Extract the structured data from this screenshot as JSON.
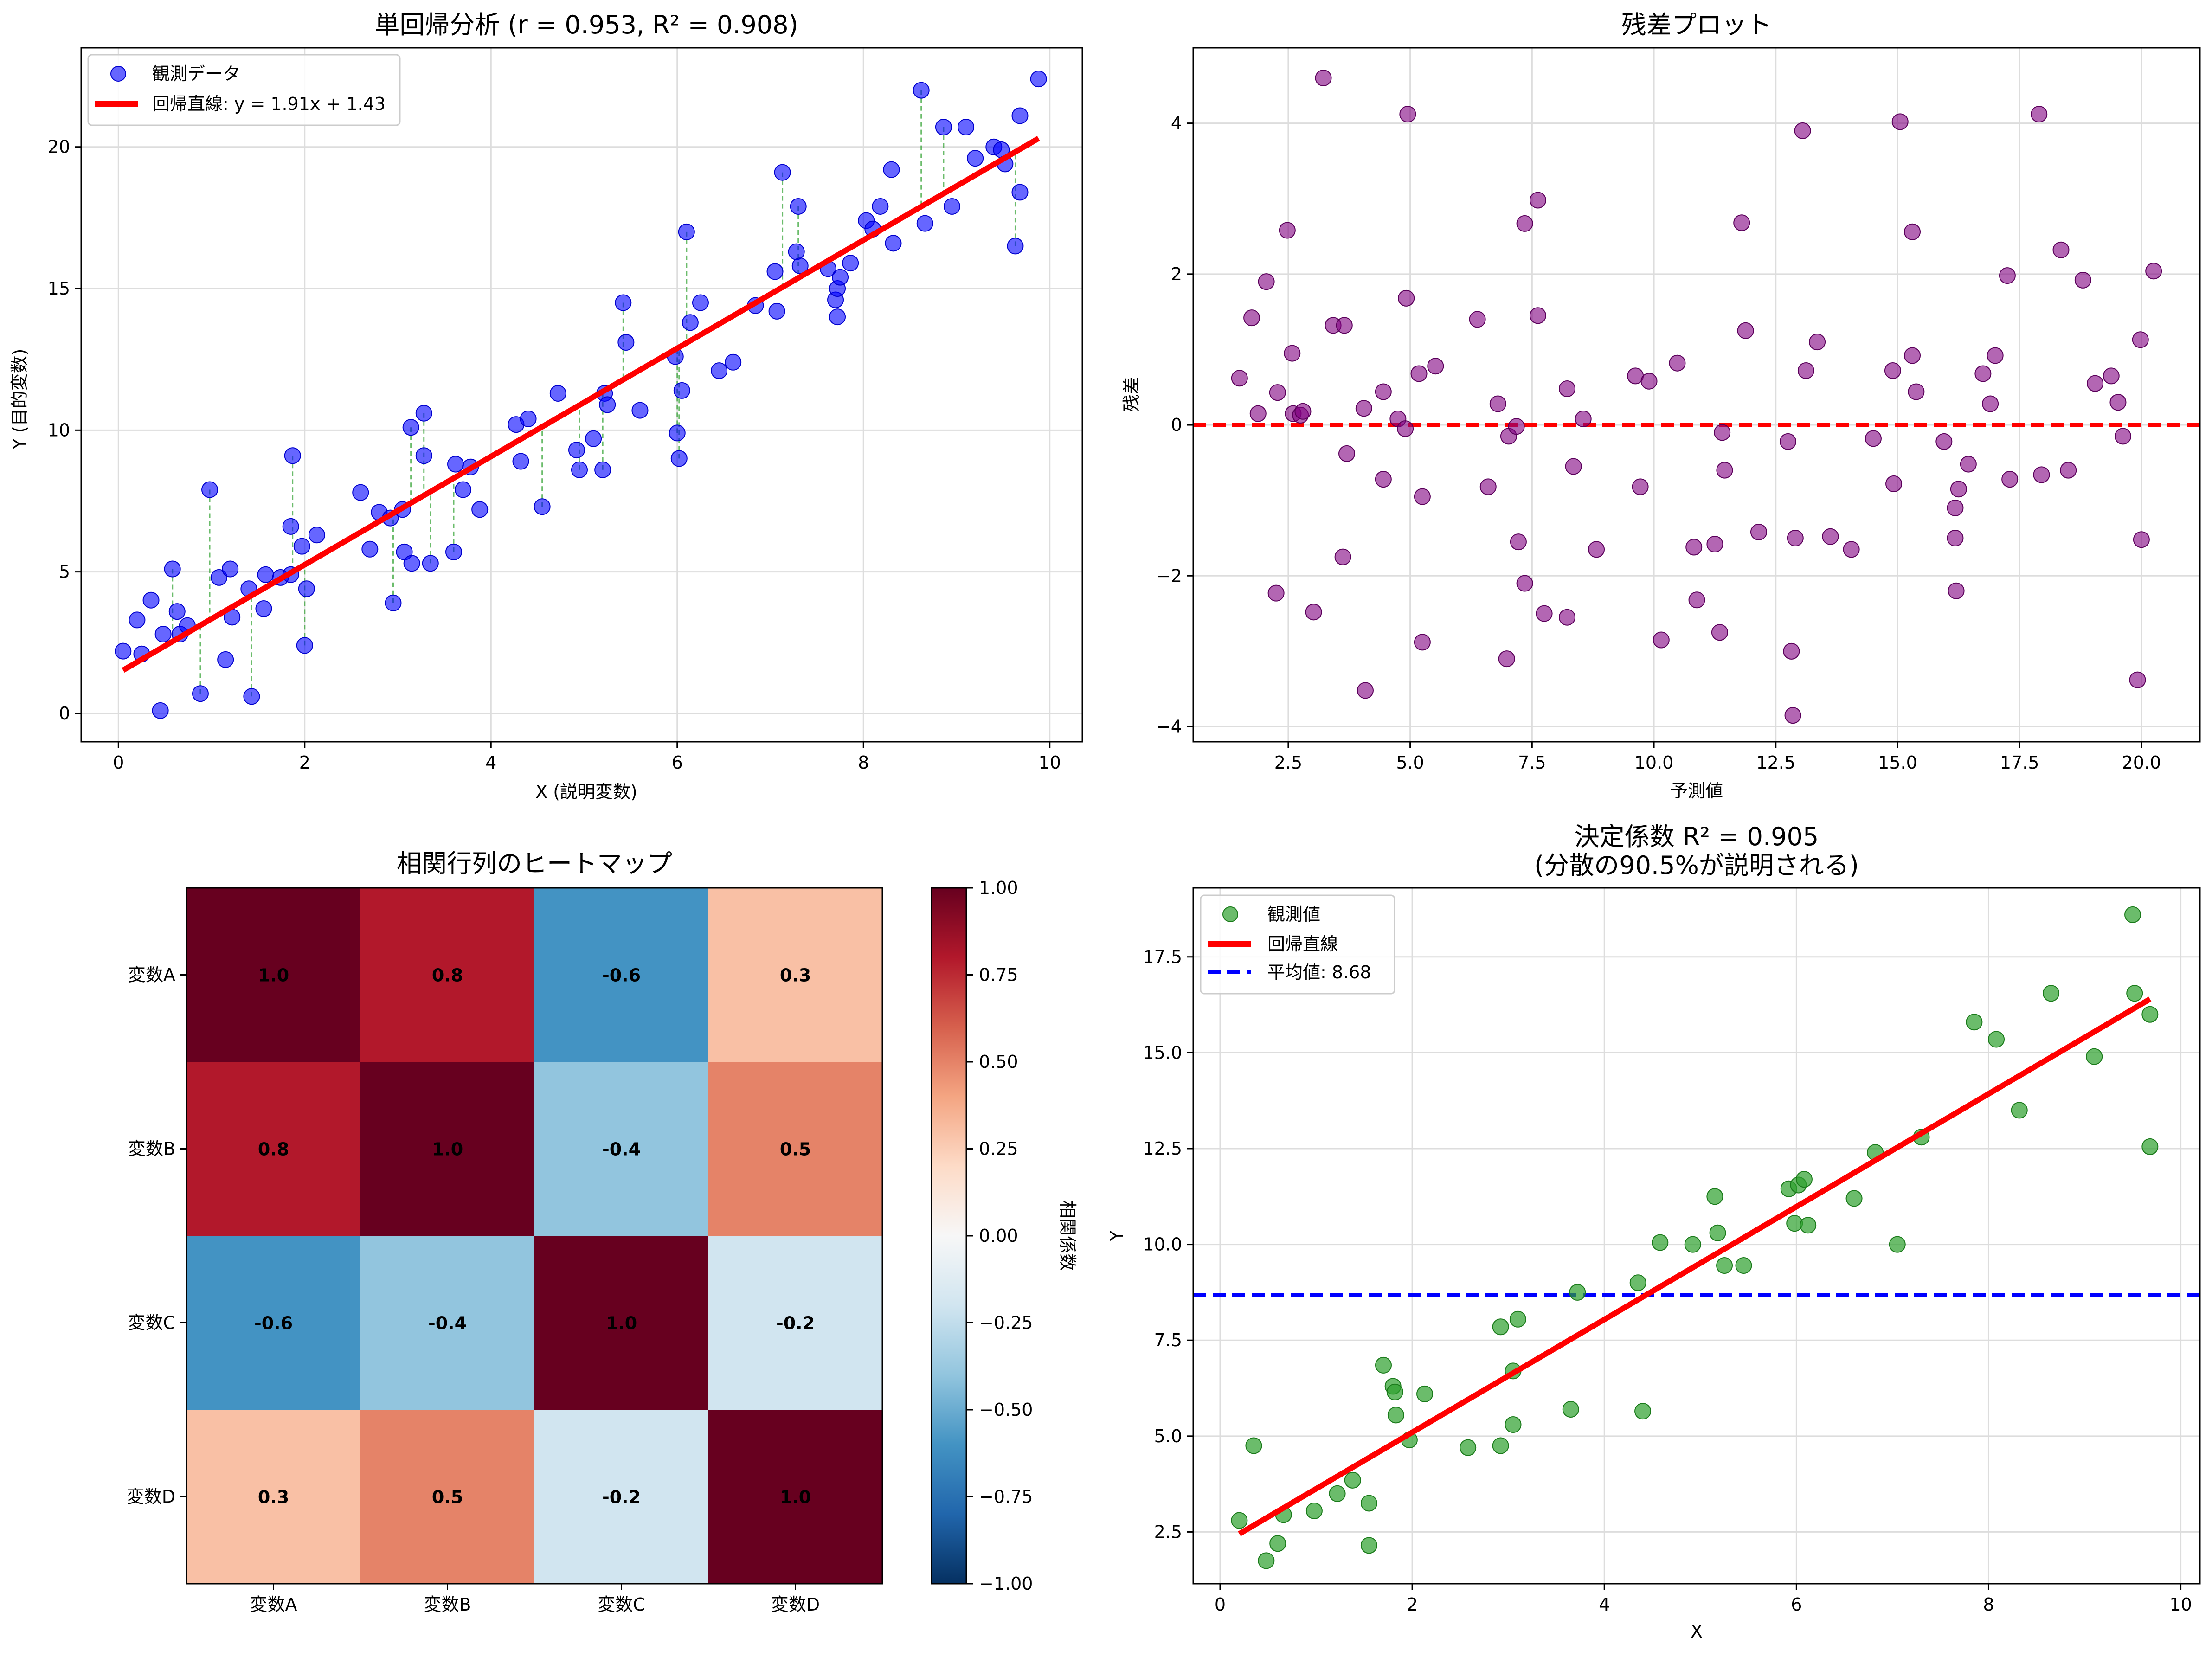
{
  "chart_data": [
    {
      "id": "regression",
      "type": "scatter",
      "title": "単回帰分析 (r = 0.953, R² = 0.908)",
      "xlabel": "X (説明変数)",
      "ylabel": "Y (目的変数)",
      "xlim": [
        -0.4,
        10.35
      ],
      "ylim": [
        -1.0,
        23.5
      ],
      "xticks": [
        0,
        2,
        4,
        6,
        8,
        10
      ],
      "yticks": [
        0,
        5,
        10,
        15,
        20
      ],
      "grid": true,
      "legend_position": "top-left",
      "legend": [
        "観測データ",
        "回帰直線: y = 1.91x + 1.43"
      ],
      "colors": {
        "points": "#0000ff",
        "line": "#ff0000",
        "residual_lines": "#2ca02c"
      },
      "regression_line": {
        "slope": 1.91,
        "intercept": 1.43,
        "x_range": [
          0.05,
          9.88
        ]
      },
      "points": [
        [
          0.05,
          2.2
        ],
        [
          0.2,
          3.3
        ],
        [
          0.25,
          2.1
        ],
        [
          0.35,
          4.0
        ],
        [
          0.45,
          0.1
        ],
        [
          0.48,
          2.8
        ],
        [
          0.58,
          5.1
        ],
        [
          0.63,
          3.6
        ],
        [
          0.66,
          2.8
        ],
        [
          0.74,
          3.1
        ],
        [
          0.88,
          0.7
        ],
        [
          0.98,
          7.9
        ],
        [
          1.08,
          4.8
        ],
        [
          1.15,
          1.9
        ],
        [
          1.2,
          5.1
        ],
        [
          1.22,
          3.4
        ],
        [
          1.4,
          4.4
        ],
        [
          1.43,
          0.6
        ],
        [
          1.56,
          3.7
        ],
        [
          1.58,
          4.9
        ],
        [
          1.74,
          4.8
        ],
        [
          1.85,
          4.9
        ],
        [
          1.85,
          6.6
        ],
        [
          1.87,
          9.1
        ],
        [
          1.97,
          5.9
        ],
        [
          2.0,
          2.4
        ],
        [
          2.02,
          4.4
        ],
        [
          2.13,
          6.3
        ],
        [
          2.6,
          7.8
        ],
        [
          2.7,
          5.8
        ],
        [
          2.8,
          7.1
        ],
        [
          2.92,
          6.9
        ],
        [
          2.95,
          3.9
        ],
        [
          3.05,
          7.2
        ],
        [
          3.07,
          5.7
        ],
        [
          3.15,
          5.3
        ],
        [
          3.14,
          10.1
        ],
        [
          3.28,
          10.6
        ],
        [
          3.28,
          9.1
        ],
        [
          3.35,
          5.3
        ],
        [
          3.6,
          5.7
        ],
        [
          3.62,
          8.8
        ],
        [
          3.7,
          7.9
        ],
        [
          3.78,
          8.7
        ],
        [
          3.88,
          7.2
        ],
        [
          4.27,
          10.2
        ],
        [
          4.32,
          8.9
        ],
        [
          4.4,
          10.4
        ],
        [
          4.55,
          7.3
        ],
        [
          4.72,
          11.3
        ],
        [
          4.92,
          9.3
        ],
        [
          4.95,
          8.6
        ],
        [
          5.1,
          9.7
        ],
        [
          5.2,
          8.6
        ],
        [
          5.22,
          11.3
        ],
        [
          5.25,
          10.9
        ],
        [
          5.42,
          14.5
        ],
        [
          5.45,
          13.1
        ],
        [
          5.6,
          10.7
        ],
        [
          5.98,
          12.6
        ],
        [
          6.0,
          9.9
        ],
        [
          6.02,
          9.0
        ],
        [
          6.05,
          11.4
        ],
        [
          6.1,
          17.0
        ],
        [
          6.14,
          13.8
        ],
        [
          6.25,
          14.5
        ],
        [
          6.45,
          12.1
        ],
        [
          6.6,
          12.4
        ],
        [
          6.84,
          14.4
        ],
        [
          7.05,
          15.6
        ],
        [
          7.07,
          14.2
        ],
        [
          7.13,
          19.1
        ],
        [
          7.28,
          16.3
        ],
        [
          7.3,
          17.9
        ],
        [
          7.32,
          15.8
        ],
        [
          7.62,
          15.7
        ],
        [
          7.7,
          14.6
        ],
        [
          7.72,
          14.0
        ],
        [
          7.72,
          15.0
        ],
        [
          7.75,
          15.4
        ],
        [
          7.86,
          15.9
        ],
        [
          8.03,
          17.4
        ],
        [
          8.1,
          17.1
        ],
        [
          8.18,
          17.9
        ],
        [
          8.3,
          19.2
        ],
        [
          8.32,
          16.6
        ],
        [
          8.62,
          22.0
        ],
        [
          8.66,
          17.3
        ],
        [
          8.86,
          20.7
        ],
        [
          8.95,
          17.9
        ],
        [
          9.1,
          20.7
        ],
        [
          9.2,
          19.6
        ],
        [
          9.4,
          20.0
        ],
        [
          9.48,
          19.9
        ],
        [
          9.52,
          19.4
        ],
        [
          9.63,
          16.5
        ],
        [
          9.68,
          21.1
        ],
        [
          9.68,
          18.4
        ],
        [
          9.88,
          22.4
        ]
      ]
    },
    {
      "id": "residuals",
      "type": "scatter",
      "title": "残差プロット",
      "xlabel": "予測値",
      "ylabel": "残差",
      "xlim": [
        0.55,
        21.2
      ],
      "ylim": [
        -4.2,
        5.0
      ],
      "xticks": [
        2.5,
        5.0,
        7.5,
        10.0,
        12.5,
        15.0,
        17.5,
        20.0
      ],
      "xtick_labels": [
        "2.5",
        "5.0",
        "7.5",
        "10.0",
        "12.5",
        "15.0",
        "17.5",
        "20.0"
      ],
      "yticks": [
        -4,
        -2,
        0,
        2,
        4
      ],
      "ytick_labels": [
        "−4",
        "−2",
        "0",
        "2",
        "4"
      ],
      "grid": true,
      "zero_line": 0,
      "colors": {
        "points": "#800080",
        "zero_line": "#ff0000"
      },
      "points": [
        [
          1.5,
          0.62
        ],
        [
          1.75,
          1.42
        ],
        [
          1.88,
          0.15
        ],
        [
          2.05,
          1.9
        ],
        [
          2.25,
          -2.23
        ],
        [
          2.28,
          0.43
        ],
        [
          2.48,
          2.58
        ],
        [
          2.58,
          0.95
        ],
        [
          2.6,
          0.15
        ],
        [
          2.75,
          0.13
        ],
        [
          2.8,
          0.18
        ],
        [
          3.02,
          -2.48
        ],
        [
          3.22,
          4.6
        ],
        [
          3.42,
          1.32
        ],
        [
          3.62,
          -1.75
        ],
        [
          3.65,
          1.32
        ],
        [
          3.7,
          -0.38
        ],
        [
          4.05,
          0.22
        ],
        [
          4.08,
          -3.52
        ],
        [
          4.45,
          0.44
        ],
        [
          4.45,
          -0.72
        ],
        [
          4.75,
          0.08
        ],
        [
          4.9,
          -0.05
        ],
        [
          4.92,
          1.68
        ],
        [
          4.95,
          4.12
        ],
        [
          5.18,
          0.68
        ],
        [
          5.25,
          -0.95
        ],
        [
          5.25,
          -2.88
        ],
        [
          5.52,
          0.78
        ],
        [
          6.38,
          1.4
        ],
        [
          6.6,
          -0.82
        ],
        [
          6.8,
          0.28
        ],
        [
          6.98,
          -3.1
        ],
        [
          7.02,
          -0.15
        ],
        [
          7.18,
          -0.02
        ],
        [
          7.22,
          -1.55
        ],
        [
          7.35,
          2.67
        ],
        [
          7.35,
          -2.1
        ],
        [
          7.62,
          2.98
        ],
        [
          7.62,
          1.45
        ],
        [
          7.75,
          -2.5
        ],
        [
          8.22,
          0.48
        ],
        [
          8.22,
          -2.55
        ],
        [
          8.35,
          -0.55
        ],
        [
          8.55,
          0.08
        ],
        [
          8.82,
          -1.65
        ],
        [
          9.62,
          0.65
        ],
        [
          9.72,
          -0.82
        ],
        [
          9.9,
          0.58
        ],
        [
          10.15,
          -2.85
        ],
        [
          10.48,
          0.82
        ],
        [
          10.82,
          -1.62
        ],
        [
          10.88,
          -2.32
        ],
        [
          11.25,
          -1.58
        ],
        [
          11.35,
          -2.75
        ],
        [
          11.4,
          -0.1
        ],
        [
          11.45,
          -0.6
        ],
        [
          11.8,
          2.68
        ],
        [
          11.88,
          1.25
        ],
        [
          12.15,
          -1.42
        ],
        [
          12.75,
          -0.22
        ],
        [
          12.82,
          -3.0
        ],
        [
          12.85,
          -3.85
        ],
        [
          12.9,
          -1.5
        ],
        [
          13.05,
          3.9
        ],
        [
          13.12,
          0.72
        ],
        [
          13.35,
          1.1
        ],
        [
          13.62,
          -1.48
        ],
        [
          14.05,
          -1.65
        ],
        [
          14.5,
          -0.18
        ],
        [
          14.9,
          0.72
        ],
        [
          14.92,
          -0.78
        ],
        [
          15.05,
          4.02
        ],
        [
          15.3,
          2.56
        ],
        [
          15.3,
          0.92
        ],
        [
          15.38,
          0.44
        ],
        [
          15.95,
          -0.22
        ],
        [
          16.18,
          -1.1
        ],
        [
          16.18,
          -1.5
        ],
        [
          16.2,
          -2.2
        ],
        [
          16.25,
          -0.85
        ],
        [
          16.45,
          -0.52
        ],
        [
          16.75,
          0.68
        ],
        [
          16.9,
          0.28
        ],
        [
          17.0,
          0.92
        ],
        [
          17.25,
          1.98
        ],
        [
          17.3,
          -0.72
        ],
        [
          17.9,
          4.12
        ],
        [
          17.95,
          -0.66
        ],
        [
          18.35,
          2.32
        ],
        [
          18.5,
          -0.6
        ],
        [
          18.8,
          1.92
        ],
        [
          19.05,
          0.55
        ],
        [
          19.38,
          0.65
        ],
        [
          19.52,
          0.3
        ],
        [
          19.62,
          -0.15
        ],
        [
          19.92,
          -3.38
        ],
        [
          19.98,
          1.13
        ],
        [
          20.0,
          -1.52
        ],
        [
          20.25,
          2.04
        ]
      ]
    },
    {
      "id": "heatmap",
      "type": "heatmap",
      "title": "相関行列のヒートマップ",
      "labels": [
        "変数A",
        "変数B",
        "変数C",
        "変数D"
      ],
      "matrix": [
        [
          1.0,
          0.8,
          -0.6,
          0.3
        ],
        [
          0.8,
          1.0,
          -0.4,
          0.5
        ],
        [
          -0.6,
          -0.4,
          1.0,
          -0.2
        ],
        [
          0.3,
          0.5,
          -0.2,
          1.0
        ]
      ],
      "cell_labels": [
        [
          "1.0",
          "0.8",
          "-0.6",
          "0.3"
        ],
        [
          "0.8",
          "1.0",
          "-0.4",
          "0.5"
        ],
        [
          "-0.6",
          "-0.4",
          "1.0",
          "-0.2"
        ],
        [
          "0.3",
          "0.5",
          "-0.2",
          "1.0"
        ]
      ],
      "colormap": "RdBu_r",
      "colorbar_label": "相関係数",
      "colorbar_range": [
        -1.0,
        1.0
      ],
      "colorbar_ticks": [
        1.0,
        0.75,
        0.5,
        0.25,
        0.0,
        -0.25,
        -0.5,
        -0.75,
        -1.0
      ],
      "colorbar_tick_labels": [
        "1.00",
        "0.75",
        "0.50",
        "0.25",
        "0.00",
        "−0.25",
        "−0.50",
        "−0.75",
        "−1.00"
      ]
    },
    {
      "id": "r2",
      "type": "scatter",
      "title": "決定係数 R² = 0.905",
      "subtitle": "(分散の90.5%が説明される)",
      "xlabel": "X",
      "ylabel": "Y",
      "xlim": [
        -0.28,
        10.2
      ],
      "ylim": [
        1.15,
        19.3
      ],
      "xticks": [
        0,
        2,
        4,
        6,
        8,
        10
      ],
      "yticks": [
        2.5,
        5.0,
        7.5,
        10.0,
        12.5,
        15.0,
        17.5
      ],
      "ytick_labels": [
        "2.5",
        "5.0",
        "7.5",
        "10.0",
        "12.5",
        "15.0",
        "17.5"
      ],
      "grid": true,
      "legend_position": "top-left",
      "legend": [
        "観測値",
        "回帰直線",
        "平均値: 8.68"
      ],
      "mean_value": 8.68,
      "colors": {
        "points": "#2ca02c",
        "line": "#ff0000",
        "mean_line": "#0000ff"
      },
      "regression_line": {
        "x_range": [
          0.2,
          9.68
        ],
        "y_range": [
          2.45,
          16.4
        ]
      },
      "points": [
        [
          0.2,
          2.8
        ],
        [
          0.35,
          4.75
        ],
        [
          0.48,
          1.75
        ],
        [
          0.6,
          2.2
        ],
        [
          0.66,
          2.95
        ],
        [
          0.98,
          3.05
        ],
        [
          1.22,
          3.5
        ],
        [
          1.38,
          3.85
        ],
        [
          1.55,
          2.15
        ],
        [
          1.55,
          3.25
        ],
        [
          1.7,
          6.85
        ],
        [
          1.8,
          6.3
        ],
        [
          1.82,
          6.15
        ],
        [
          1.83,
          5.55
        ],
        [
          1.97,
          4.9
        ],
        [
          2.13,
          6.1
        ],
        [
          2.58,
          4.7
        ],
        [
          2.92,
          7.85
        ],
        [
          2.92,
          4.75
        ],
        [
          3.05,
          6.7
        ],
        [
          3.05,
          5.3
        ],
        [
          3.1,
          8.05
        ],
        [
          3.65,
          5.7
        ],
        [
          3.72,
          8.75
        ],
        [
          4.35,
          9.0
        ],
        [
          4.4,
          5.65
        ],
        [
          4.58,
          10.05
        ],
        [
          4.92,
          10.0
        ],
        [
          5.15,
          11.25
        ],
        [
          5.18,
          10.3
        ],
        [
          5.25,
          9.45
        ],
        [
          5.45,
          9.45
        ],
        [
          5.92,
          11.45
        ],
        [
          5.98,
          10.55
        ],
        [
          6.02,
          11.55
        ],
        [
          6.08,
          11.7
        ],
        [
          6.12,
          10.5
        ],
        [
          6.6,
          11.2
        ],
        [
          6.82,
          12.4
        ],
        [
          7.05,
          10.0
        ],
        [
          7.3,
          12.8
        ],
        [
          7.85,
          15.8
        ],
        [
          8.08,
          15.35
        ],
        [
          8.32,
          13.5
        ],
        [
          8.65,
          16.55
        ],
        [
          9.1,
          14.9
        ],
        [
          9.5,
          18.6
        ],
        [
          9.52,
          16.55
        ],
        [
          9.68,
          16.0
        ],
        [
          9.68,
          12.55
        ]
      ]
    }
  ]
}
